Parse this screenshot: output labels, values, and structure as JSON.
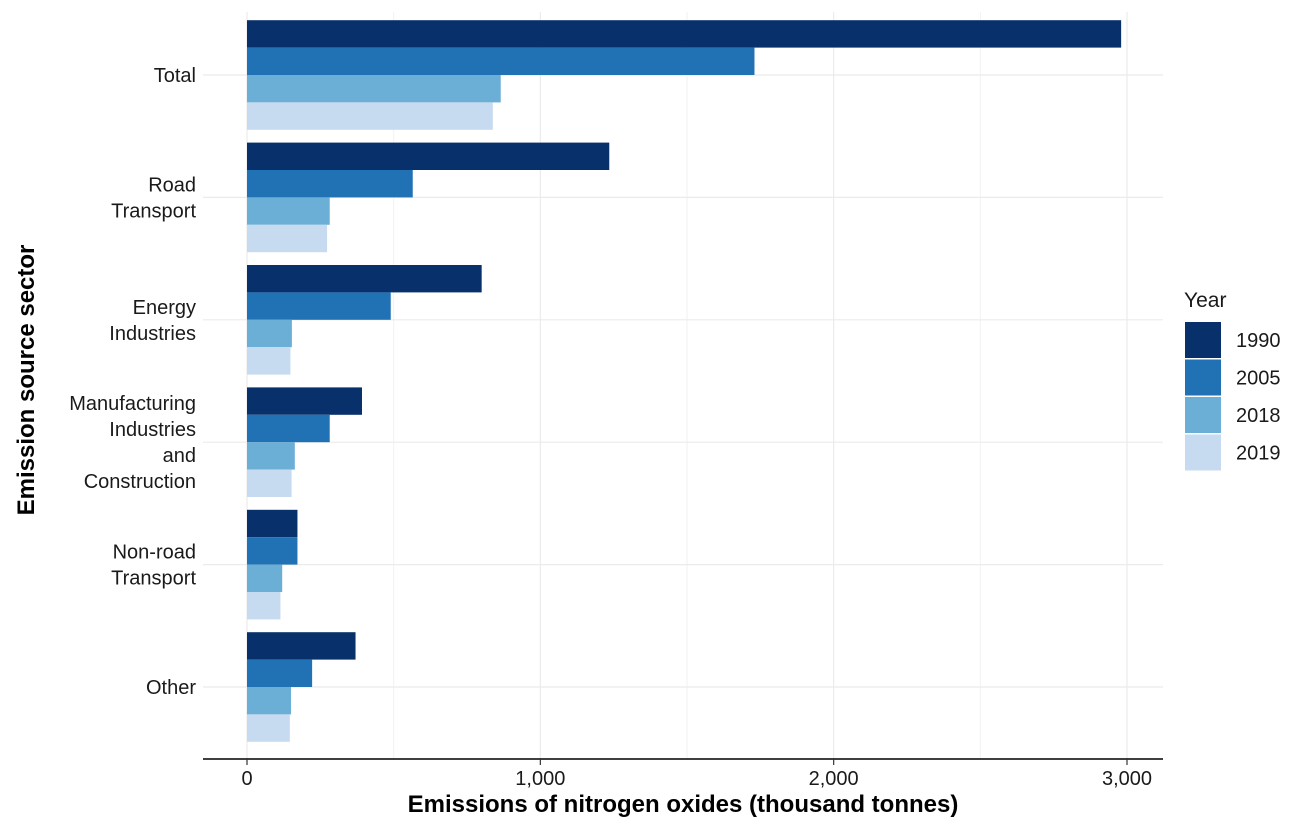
{
  "chart_data": {
    "type": "bar",
    "orientation": "horizontal",
    "xlabel": "Emissions of nitrogen oxides (thousand tonnes)",
    "ylabel": "Emission source sector",
    "xlim": [
      0,
      3000
    ],
    "xticks": [
      0,
      1000,
      2000,
      3000
    ],
    "xtick_labels": [
      "0",
      "1,000",
      "2,000",
      "3,000"
    ],
    "grid": true,
    "legend": {
      "title": "Year",
      "placement": "right"
    },
    "categories": [
      {
        "label_lines": [
          "Total"
        ]
      },
      {
        "label_lines": [
          "Road",
          "Transport"
        ]
      },
      {
        "label_lines": [
          "Energy",
          "Industries"
        ]
      },
      {
        "label_lines": [
          "Manufacturing",
          "Industries",
          "and",
          "Construction"
        ]
      },
      {
        "label_lines": [
          "Non-road",
          "Transport"
        ]
      },
      {
        "label_lines": [
          "Other"
        ]
      }
    ],
    "series": [
      {
        "name": "1990",
        "color": "#08306b",
        "values": [
          2980,
          1235,
          800,
          392,
          172,
          370
        ]
      },
      {
        "name": "2005",
        "color": "#2171b5",
        "values": [
          1730,
          565,
          490,
          282,
          172,
          222
        ]
      },
      {
        "name": "2018",
        "color": "#6baed6",
        "values": [
          865,
          282,
          153,
          163,
          120,
          150
        ]
      },
      {
        "name": "2019",
        "color": "#c6dbef",
        "values": [
          838,
          273,
          148,
          152,
          114,
          146
        ]
      }
    ]
  }
}
